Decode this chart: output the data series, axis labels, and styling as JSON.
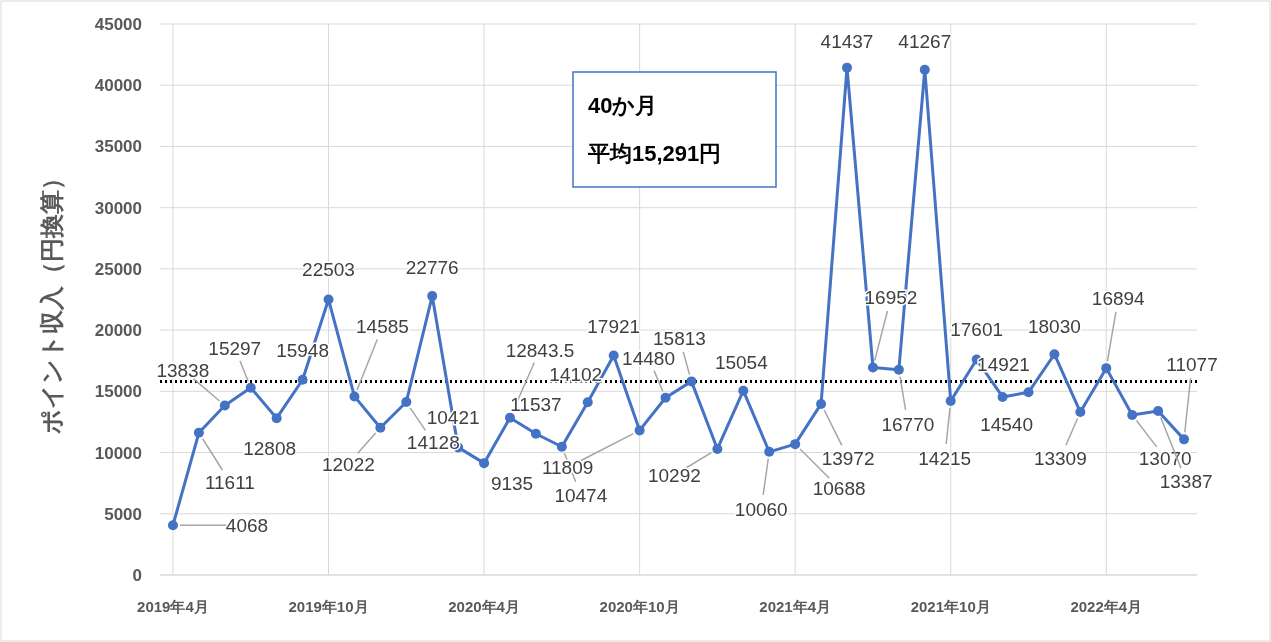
{
  "chart_data": {
    "type": "line",
    "ylabel": "ポイント収入（円換算）",
    "categories": [
      "2019年4月",
      null,
      null,
      null,
      null,
      null,
      "2019年10月",
      null,
      null,
      null,
      null,
      null,
      "2020年4月",
      null,
      null,
      null,
      null,
      null,
      "2020年10月",
      null,
      null,
      null,
      null,
      null,
      "2021年4月",
      null,
      null,
      null,
      null,
      null,
      "2021年10月",
      null,
      null,
      null,
      null,
      null,
      "2022年4月",
      null,
      null,
      null
    ],
    "series": [
      {
        "color": "#4472c4",
        "values": [
          4068,
          11611,
          13838,
          15297,
          12808,
          15948,
          22503,
          14585,
          12022,
          14128,
          22776,
          10421,
          9135,
          12843.5,
          11537,
          10474,
          14102,
          17921,
          11809,
          14480,
          15813,
          10292,
          15054,
          10060,
          10688,
          13972,
          41437,
          16952,
          16770,
          41267,
          14215,
          17601,
          14540,
          14921,
          18030,
          13309,
          16894,
          13070,
          13387,
          11077
        ]
      }
    ],
    "ylim": [
      0,
      45000
    ],
    "yticks": [
      0,
      5000,
      10000,
      15000,
      20000,
      25000,
      30000,
      35000,
      40000,
      45000
    ],
    "grid": true,
    "marker": "circle",
    "line_style": "solid",
    "data_labels": true,
    "ref_lines": [
      {
        "axis": "y",
        "value": 15800,
        "color": "#000000",
        "line_style": "dotted"
      }
    ],
    "annotations": [
      "40か月",
      "平均15,291円"
    ]
  }
}
